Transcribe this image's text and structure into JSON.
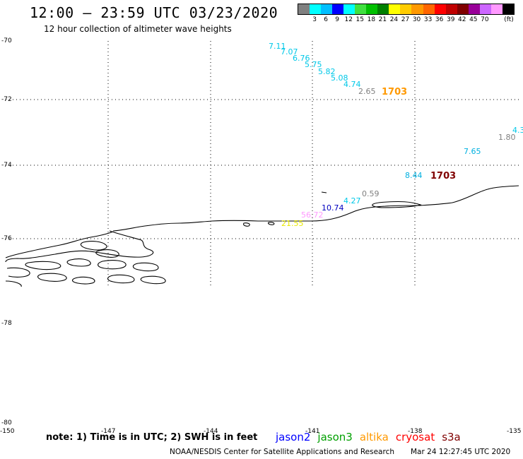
{
  "header": {
    "title": "12:00 — 23:59 UTC 03/23/2020",
    "subtitle": "12 hour collection of altimeter wave heights"
  },
  "legend": {
    "unit": "(ft)",
    "colors": [
      "#808080",
      "#00ffff",
      "#00bfff",
      "#0000ff",
      "#00ffff",
      "#40e040",
      "#00c000",
      "#008000",
      "#ffff00",
      "#ffcc00",
      "#ff9900",
      "#ff6600",
      "#ff0000",
      "#c00000",
      "#800000",
      "#990099",
      "#cc66ff",
      "#ff99ff",
      "#000000"
    ],
    "labels": [
      "3",
      "6",
      "9",
      "12",
      "15",
      "18",
      "21",
      "24",
      "27",
      "30",
      "33",
      "36",
      "39",
      "42",
      "45",
      "70"
    ]
  },
  "map": {
    "lat_labels": [
      "-70",
      "-72",
      "-74",
      "-76",
      "-78",
      "-80"
    ],
    "lon_labels": [
      "-150",
      "-147",
      "-144",
      "-141",
      "-138",
      "-135"
    ],
    "wave_heights": [
      {
        "value": "7.11",
        "color": "#00c8e8"
      },
      {
        "value": "7.07",
        "color": "#00c8e8"
      },
      {
        "value": "6.76",
        "color": "#00c8e8"
      },
      {
        "value": "5.75",
        "color": "#00c8e8"
      },
      {
        "value": "5.82",
        "color": "#00c8e8"
      },
      {
        "value": "5.08",
        "color": "#00c8e8"
      },
      {
        "value": "4.74",
        "color": "#00c8e8"
      },
      {
        "value": "2.65",
        "color": "#808080"
      },
      {
        "value": "1.80",
        "color": "#808080"
      },
      {
        "value": "7.65",
        "color": "#00b0e0"
      },
      {
        "value": "8.44",
        "color": "#00b0e0"
      },
      {
        "value": "0.59",
        "color": "#808080"
      },
      {
        "value": "4.27",
        "color": "#00c8e8"
      },
      {
        "value": "10.74",
        "color": "#0000c0"
      },
      {
        "value": "56.72",
        "color": "#ff99ff"
      },
      {
        "value": "21.55",
        "color": "#e8e800"
      },
      {
        "value": "4.3",
        "color": "#00c8e8"
      }
    ],
    "pass_times": [
      {
        "value": "1703",
        "color": "#ff9900"
      },
      {
        "value": "1703",
        "color": "#800000"
      }
    ]
  },
  "note": "note: 1) Time is in UTC; 2) SWH is in feet",
  "satellites": [
    {
      "name": "jason2",
      "color": "#0000ff"
    },
    {
      "name": "jason3",
      "color": "#00a000"
    },
    {
      "name": "altika",
      "color": "#ff9900"
    },
    {
      "name": "cryosat",
      "color": "#ff0000"
    },
    {
      "name": "s3a",
      "color": "#800000"
    }
  ],
  "footer": {
    "credit": "NOAA/NESDIS Center for Satellite Applications and Research",
    "timestamp": "Mar 24 12:27:45 UTC 2020"
  }
}
